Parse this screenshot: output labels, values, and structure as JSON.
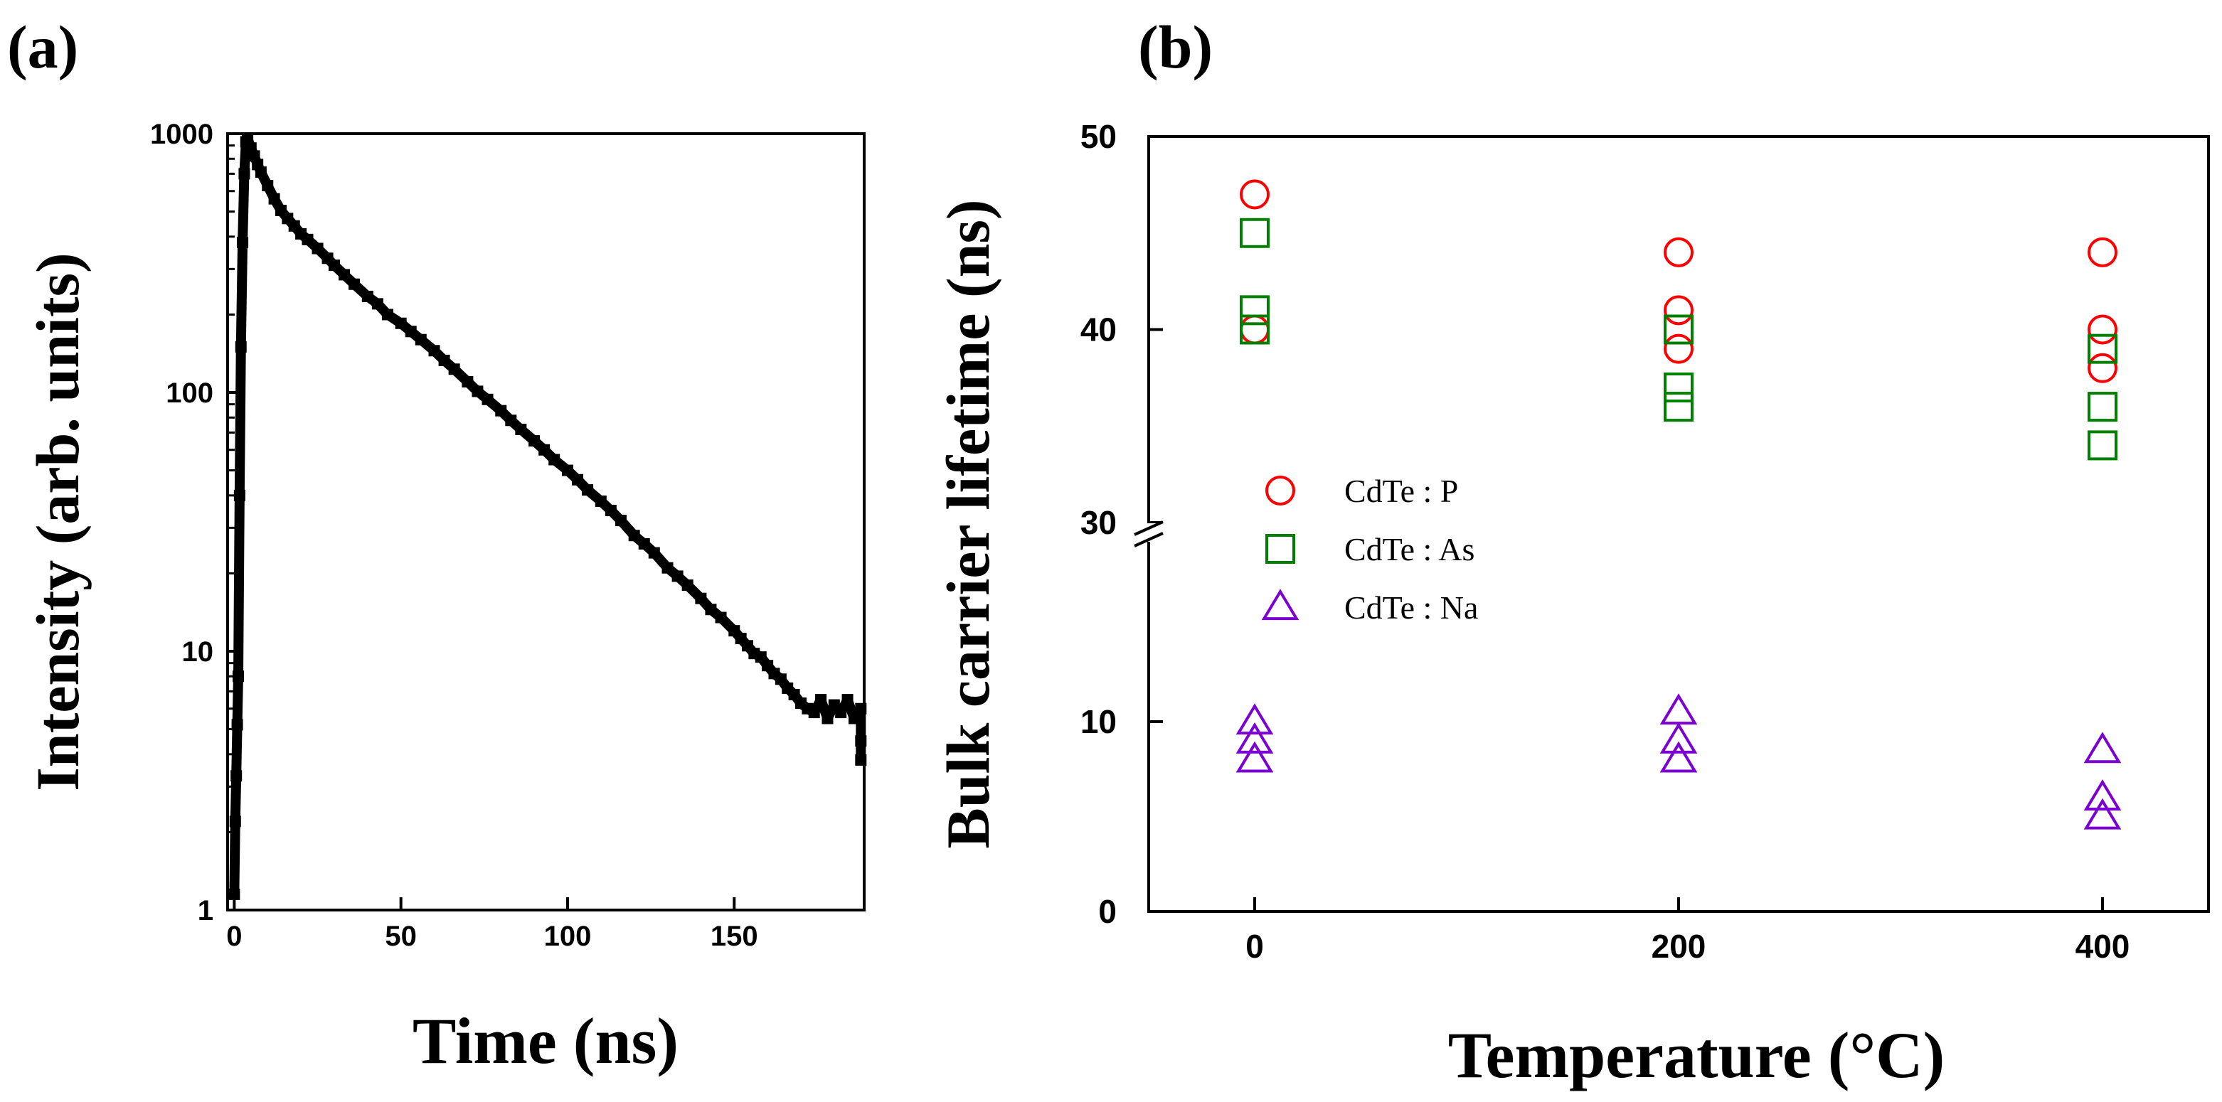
{
  "chart_data": [
    {
      "panel_label": "(a)",
      "type": "scatter",
      "xlabel": "Time (ns)",
      "ylabel": "Intensity (arb. units)",
      "xlim": [
        -2,
        189
      ],
      "ylim": [
        1,
        1000
      ],
      "yscale": "log",
      "xticks": [
        0,
        50,
        100,
        150
      ],
      "yticks": [
        1,
        10,
        100,
        1000
      ],
      "grid": false,
      "series": [
        {
          "color": "#000000",
          "marker": "square",
          "x": [
            0,
            0.3,
            0.6,
            0.9,
            1.2,
            1.6,
            2,
            2.5,
            3,
            3.5,
            4,
            5,
            6,
            7,
            8,
            10,
            12,
            14,
            16,
            18,
            20,
            22,
            25,
            28,
            30,
            33,
            36,
            40,
            43,
            46,
            50,
            53,
            56,
            60,
            63,
            66,
            70,
            73,
            76,
            80,
            83,
            86,
            90,
            93,
            96,
            100,
            103,
            106,
            110,
            113,
            116,
            120,
            123,
            126,
            130,
            133,
            136,
            140,
            143,
            146,
            150,
            152,
            154,
            156,
            158,
            160,
            162,
            164,
            166,
            168,
            170,
            172,
            174,
            176,
            178,
            180,
            182,
            184,
            186,
            188,
            188,
            188
          ],
          "y": [
            1.15,
            2.2,
            3.3,
            5.2,
            8,
            40,
            150,
            380,
            700,
            930,
            960,
            880,
            820,
            760,
            710,
            630,
            560,
            505,
            470,
            440,
            410,
            390,
            360,
            330,
            310,
            285,
            262,
            235,
            220,
            200,
            185,
            172,
            160,
            145,
            133,
            123,
            110,
            101,
            94,
            85,
            78,
            72,
            65,
            60,
            55,
            50,
            46,
            42,
            38,
            35,
            32,
            28,
            26,
            24,
            21,
            19.5,
            18,
            16,
            14.5,
            13.5,
            12,
            11.2,
            10.5,
            9.8,
            9.5,
            8.8,
            8.2,
            7.8,
            7.2,
            6.8,
            6.3,
            6,
            5.8,
            6.5,
            5.5,
            6.2,
            5.8,
            6.5,
            5.5,
            6,
            4.5,
            3.8
          ]
        }
      ]
    },
    {
      "panel_label": "(b)",
      "type": "scatter",
      "xlabel": "Temperature (°C)",
      "ylabel": "Bulk carrier lifetime (ns)",
      "xlim": [
        -50,
        450
      ],
      "xticks": [
        0,
        200,
        400
      ],
      "yticks": [
        0,
        10,
        30,
        40,
        50
      ],
      "y_axis_break": [
        10,
        30
      ],
      "grid": false,
      "legend_position": "center-left",
      "series": [
        {
          "name": "CdTe : P",
          "color": "#ff0000",
          "marker": "circle",
          "x": [
            0,
            0,
            200,
            200,
            200,
            400,
            400,
            400
          ],
          "y": [
            47,
            40,
            44,
            41,
            39,
            44,
            40,
            38
          ]
        },
        {
          "name": "CdTe : As",
          "color": "#008000",
          "marker": "square",
          "x": [
            0,
            0,
            0,
            200,
            200,
            200,
            400,
            400,
            400
          ],
          "y": [
            45,
            41,
            40,
            40,
            37,
            36,
            39,
            36,
            34
          ]
        },
        {
          "name": "CdTe : Na",
          "color": "#7b00d4",
          "marker": "triangle",
          "x": [
            0,
            0,
            0,
            200,
            200,
            200,
            400,
            400,
            400
          ],
          "y": [
            10,
            9,
            8,
            11,
            9,
            8,
            8.5,
            6,
            5
          ]
        }
      ]
    }
  ]
}
